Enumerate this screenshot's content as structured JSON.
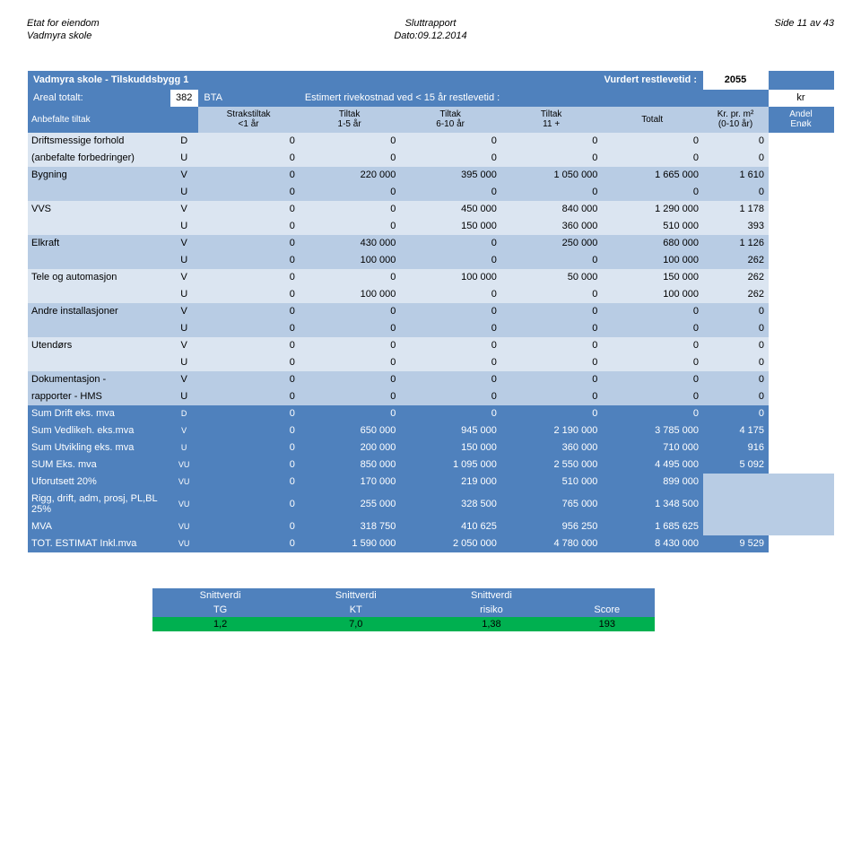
{
  "header": {
    "left1": "Etat for eiendom",
    "left2": "Vadmyra skole",
    "center1": "Sluttrapport",
    "center2": "Dato:09.12.2014",
    "right1": "Side 11 av 43"
  },
  "title": {
    "name": "Vadmyra skole - Tilskuddsbygg 1",
    "vurdert": "Vurdert restlevetid :",
    "year": "2055",
    "areal_lbl": "Areal totalt:",
    "areal_val": "382",
    "bta": "BTA",
    "est": "Estimert rivekostnad ved < 15 år restlevetid :",
    "kr": "kr"
  },
  "heads": {
    "anbefalte": "Anbefalte tiltak",
    "c1a": "Strakstiltak",
    "c1b": "<1 år",
    "c2a": "Tiltak",
    "c2b": "1-5 år",
    "c3a": "Tiltak",
    "c3b": "6-10 år",
    "c4a": "Tiltak",
    "c4b": "11 +",
    "c5": "Totalt",
    "c6a": "Kr. pr. m²",
    "c6b": "(0-10 år)",
    "c7a": "Andel",
    "c7b": "Enøk"
  },
  "rows": [
    {
      "label": "Driftsmessige forhold",
      "code": "D",
      "v": [
        "0",
        "0",
        "0",
        "0",
        "0",
        "0"
      ],
      "shade": "light",
      "andel": true
    },
    {
      "label": "(anbefalte forbedringer)",
      "code": "U",
      "v": [
        "0",
        "0",
        "0",
        "0",
        "0",
        "0"
      ],
      "shade": "light",
      "andel": true
    },
    {
      "label": "Bygning",
      "code": "V",
      "v": [
        "0",
        "220 000",
        "395 000",
        "1 050 000",
        "1 665 000",
        "1 610"
      ],
      "shade": "dark",
      "andel": true
    },
    {
      "label": "",
      "code": "U",
      "v": [
        "0",
        "0",
        "0",
        "0",
        "0",
        "0"
      ],
      "shade": "dark",
      "andel": true
    },
    {
      "label": "VVS",
      "code": "V",
      "v": [
        "0",
        "0",
        "450 000",
        "840 000",
        "1 290 000",
        "1 178"
      ],
      "shade": "light",
      "andel": true
    },
    {
      "label": "",
      "code": "U",
      "v": [
        "0",
        "0",
        "150 000",
        "360 000",
        "510 000",
        "393"
      ],
      "shade": "light",
      "andel": true
    },
    {
      "label": "Elkraft",
      "code": "V",
      "v": [
        "0",
        "430 000",
        "0",
        "250 000",
        "680 000",
        "1 126"
      ],
      "shade": "dark",
      "andel": true
    },
    {
      "label": "",
      "code": "U",
      "v": [
        "0",
        "100 000",
        "0",
        "0",
        "100 000",
        "262"
      ],
      "shade": "dark",
      "andel": true
    },
    {
      "label": "Tele og automasjon",
      "code": "V",
      "v": [
        "0",
        "0",
        "100 000",
        "50 000",
        "150 000",
        "262"
      ],
      "shade": "light",
      "andel": true
    },
    {
      "label": "",
      "code": "U",
      "v": [
        "0",
        "100 000",
        "0",
        "0",
        "100 000",
        "262"
      ],
      "shade": "light",
      "andel": true
    },
    {
      "label": "Andre installasjoner",
      "code": "V",
      "v": [
        "0",
        "0",
        "0",
        "0",
        "0",
        "0"
      ],
      "shade": "dark",
      "andel": true
    },
    {
      "label": "",
      "code": "U",
      "v": [
        "0",
        "0",
        "0",
        "0",
        "0",
        "0"
      ],
      "shade": "dark",
      "andel": true
    },
    {
      "label": "Utendørs",
      "code": "V",
      "v": [
        "0",
        "0",
        "0",
        "0",
        "0",
        "0"
      ],
      "shade": "light",
      "andel": true
    },
    {
      "label": "",
      "code": "U",
      "v": [
        "0",
        "0",
        "0",
        "0",
        "0",
        "0"
      ],
      "shade": "light",
      "andel": true
    },
    {
      "label": "Dokumentasjon -",
      "code": "V",
      "v": [
        "0",
        "0",
        "0",
        "0",
        "0",
        "0"
      ],
      "shade": "dark",
      "andel": true
    },
    {
      "label": "rapporter - HMS",
      "code": "U",
      "v": [
        "0",
        "0",
        "0",
        "0",
        "0",
        "0"
      ],
      "shade": "dark",
      "andel": true
    },
    {
      "label": "Sum Drift eks. mva",
      "code": "D",
      "v": [
        "0",
        "0",
        "0",
        "0",
        "0",
        "0"
      ],
      "shade": "sum",
      "andel": true
    },
    {
      "label": "Sum Vedlikeh. eks.mva",
      "code": "V",
      "v": [
        "0",
        "650 000",
        "945 000",
        "2 190 000",
        "3 785 000",
        "4 175"
      ],
      "shade": "sum",
      "andel": true
    },
    {
      "label": "Sum Utvikling eks. mva",
      "code": "U",
      "v": [
        "0",
        "200 000",
        "150 000",
        "360 000",
        "710 000",
        "916"
      ],
      "shade": "sum",
      "andel": true,
      "extra": "0"
    },
    {
      "label": "SUM Eks. mva",
      "code": "VU",
      "v": [
        "0",
        "850 000",
        "1 095 000",
        "2 550 000",
        "4 495 000",
        "5 092"
      ],
      "shade": "sum",
      "andel": true,
      "extra": "0"
    },
    {
      "label": "Uforutsett 20%",
      "code": "VU",
      "v": [
        "0",
        "170 000",
        "219 000",
        "510 000",
        "899 000",
        ""
      ],
      "shade": "sum",
      "andel": false
    },
    {
      "label": "Rigg, drift, adm, prosj, PL,BL 25%",
      "code": "VU",
      "v": [
        "0",
        "255 000",
        "328 500",
        "765 000",
        "1 348 500",
        ""
      ],
      "shade": "sum",
      "andel": false,
      "wrap": true
    },
    {
      "label": "MVA",
      "code": "VU",
      "v": [
        "0",
        "318 750",
        "410 625",
        "956 250",
        "1 685 625",
        ""
      ],
      "shade": "sum",
      "andel": false
    },
    {
      "label": "TOT. ESTIMAT Inkl.mva",
      "code": "VU",
      "v": [
        "0",
        "1 590 000",
        "2 050 000",
        "4 780 000",
        "8 430 000",
        "9 529"
      ],
      "shade": "sum",
      "andel": true,
      "extra": "0"
    }
  ],
  "summary": {
    "h": [
      "Snittverdi",
      "Snittverdi",
      "Snittverdi",
      ""
    ],
    "h2": [
      "TG",
      "KT",
      "risiko",
      "Score"
    ],
    "v": [
      "1,2",
      "7,0",
      "1,38",
      "193"
    ]
  }
}
